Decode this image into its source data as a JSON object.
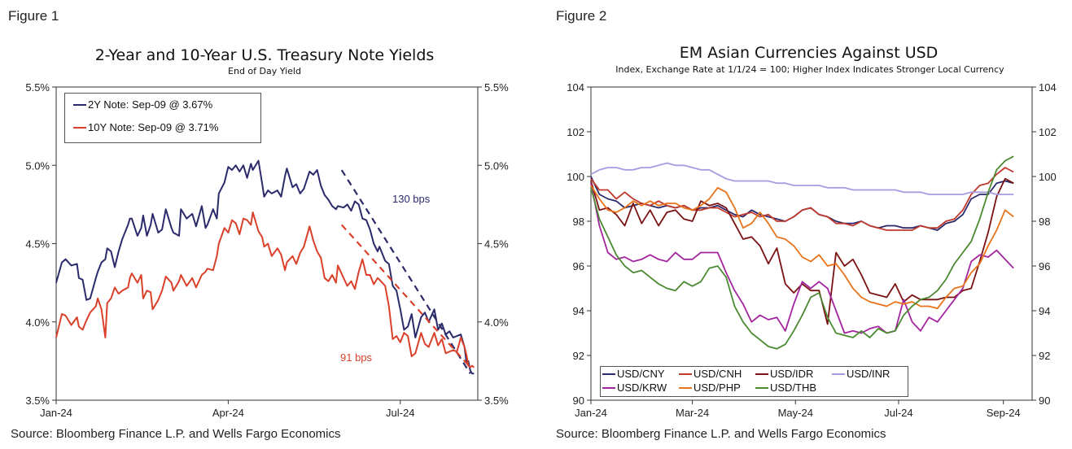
{
  "figure1": {
    "figure_label": "Figure 1",
    "source": "Source: Bloomberg Finance L.P. and Wells Fargo Economics",
    "chart_data": {
      "type": "line",
      "title": "2-Year and 10-Year U.S. Treasury Note Yields",
      "subtitle": "End of Day Yield",
      "xlabel": "",
      "ylabel": "",
      "x_ticks": [
        "Jan-24",
        "Apr-24",
        "Jul-24"
      ],
      "x_tick_days": [
        0,
        91,
        182
      ],
      "x_range_days": [
        0,
        223
      ],
      "ylim": [
        3.5,
        5.5
      ],
      "y_ticks": [
        "3.5%",
        "4.0%",
        "4.5%",
        "5.0%",
        "5.5%"
      ],
      "y_tick_values": [
        3.5,
        4.0,
        4.5,
        5.0,
        5.5
      ],
      "legend": [
        "2Y Note: Sep-09 @ 3.67%",
        "10Y Note: Sep-09 @ 3.71%"
      ],
      "legend_position": "top-left",
      "series": [
        {
          "name": "2Y Note",
          "color": "#2b2a6b",
          "x": [
            0,
            3,
            5,
            8,
            11,
            12,
            14,
            16,
            18,
            21,
            22,
            24,
            26,
            27,
            29,
            31,
            33,
            35,
            38,
            39,
            40,
            43,
            45,
            46,
            48,
            50,
            51,
            54,
            56,
            58,
            61,
            62,
            65,
            66,
            69,
            72,
            74,
            77,
            79,
            80,
            83,
            85,
            86,
            89,
            91,
            93,
            95,
            97,
            99,
            101,
            103,
            104,
            107,
            109,
            110,
            112,
            114,
            117,
            119,
            121,
            122,
            125,
            127,
            129,
            131,
            134,
            136,
            138,
            140,
            142,
            144,
            146,
            148,
            149,
            152,
            154,
            156,
            158,
            160,
            162,
            164,
            166,
            168,
            170,
            171,
            174,
            176,
            178,
            180,
            182,
            184,
            186,
            188,
            190,
            193,
            195,
            197,
            200,
            202,
            204,
            206,
            208,
            210,
            212,
            214,
            216,
            217,
            218,
            219,
            220,
            221
          ],
          "values": [
            4.25,
            4.38,
            4.4,
            4.36,
            4.37,
            4.28,
            4.27,
            4.14,
            4.15,
            4.28,
            4.32,
            4.38,
            4.4,
            4.47,
            4.45,
            4.35,
            4.45,
            4.53,
            4.62,
            4.66,
            4.66,
            4.55,
            4.6,
            4.68,
            4.55,
            4.62,
            4.69,
            4.57,
            4.59,
            4.72,
            4.6,
            4.57,
            4.55,
            4.72,
            4.66,
            4.69,
            4.61,
            4.74,
            4.6,
            4.62,
            4.72,
            4.66,
            4.82,
            4.89,
            4.99,
            4.97,
            5.0,
            4.96,
            5.0,
            4.92,
            5.01,
            4.97,
            5.03,
            4.88,
            4.8,
            4.84,
            4.82,
            4.84,
            4.8,
            4.93,
            4.98,
            4.86,
            4.88,
            4.82,
            4.85,
            4.96,
            4.94,
            4.97,
            4.87,
            4.81,
            4.78,
            4.74,
            4.72,
            4.74,
            4.73,
            4.75,
            4.71,
            4.77,
            4.75,
            4.66,
            4.65,
            4.59,
            4.5,
            4.45,
            4.48,
            4.39,
            4.37,
            4.23,
            4.2,
            4.08,
            3.95,
            3.97,
            4.05,
            3.9,
            4.03,
            4.06,
            4.0,
            4.08,
            3.95,
            3.99,
            3.92,
            3.94,
            3.9,
            3.91,
            3.92,
            3.84,
            3.74,
            3.75,
            3.69,
            3.67,
            3.67
          ]
        },
        {
          "name": "10Y Note",
          "color": "#d9412b",
          "x": [
            0,
            3,
            5,
            8,
            11,
            12,
            14,
            16,
            18,
            21,
            22,
            24,
            26,
            27,
            29,
            31,
            33,
            35,
            38,
            39,
            40,
            43,
            45,
            46,
            48,
            50,
            51,
            54,
            56,
            58,
            61,
            62,
            65,
            66,
            69,
            72,
            74,
            77,
            79,
            80,
            83,
            85,
            86,
            89,
            91,
            93,
            95,
            97,
            99,
            101,
            103,
            104,
            107,
            109,
            110,
            112,
            114,
            117,
            119,
            121,
            122,
            125,
            127,
            129,
            131,
            134,
            136,
            138,
            140,
            142,
            144,
            146,
            148,
            149,
            152,
            154,
            156,
            158,
            160,
            162,
            164,
            166,
            168,
            170,
            171,
            174,
            176,
            178,
            180,
            182,
            184,
            186,
            188,
            190,
            193,
            195,
            197,
            200,
            202,
            204,
            206,
            208,
            210,
            212,
            214,
            216,
            217,
            218,
            219,
            220,
            221
          ],
          "values": [
            3.9,
            4.05,
            4.04,
            3.98,
            4.03,
            3.97,
            3.95,
            4.01,
            4.06,
            4.1,
            4.15,
            4.08,
            3.9,
            4.12,
            4.15,
            4.22,
            4.18,
            4.2,
            4.22,
            4.28,
            4.31,
            4.25,
            4.3,
            4.15,
            4.2,
            4.19,
            4.08,
            4.14,
            4.2,
            4.29,
            4.25,
            4.2,
            4.26,
            4.3,
            4.23,
            4.28,
            4.22,
            4.3,
            4.32,
            4.34,
            4.33,
            4.42,
            4.5,
            4.6,
            4.57,
            4.65,
            4.63,
            4.56,
            4.66,
            4.65,
            4.62,
            4.7,
            4.58,
            4.54,
            4.48,
            4.5,
            4.42,
            4.47,
            4.43,
            4.33,
            4.38,
            4.42,
            4.37,
            4.44,
            4.48,
            4.61,
            4.52,
            4.45,
            4.41,
            4.28,
            4.26,
            4.3,
            4.25,
            4.36,
            4.28,
            4.23,
            4.26,
            4.21,
            4.32,
            4.4,
            4.3,
            4.3,
            4.24,
            4.28,
            4.27,
            4.23,
            4.1,
            3.89,
            3.91,
            3.87,
            3.93,
            3.91,
            3.78,
            3.8,
            3.93,
            3.86,
            3.84,
            3.93,
            3.85,
            3.89,
            3.8,
            3.81,
            3.82,
            3.81,
            3.9,
            3.84,
            3.79,
            3.72,
            3.71,
            3.72,
            3.71
          ]
        }
      ],
      "trend_lines": [
        {
          "name": "2Y decline",
          "color": "#2b2a6b",
          "x": [
            151,
            219
          ],
          "values": [
            4.97,
            3.67
          ],
          "label": "130 bps"
        },
        {
          "name": "10Y decline",
          "color": "#d9412b",
          "x": [
            151,
            219
          ],
          "values": [
            4.62,
            3.71
          ],
          "label": "91 bps"
        }
      ]
    }
  },
  "figure2": {
    "figure_label": "Figure 2",
    "source": "Source: Bloomberg Finance L.P. and Wells Fargo Economics",
    "chart_data": {
      "type": "line",
      "title": "EM Asian Currencies Against USD",
      "subtitle": "Index, Exchange Rate at 1/1/24 = 100; Higher Index Indicates Stronger Local Currency",
      "xlabel": "",
      "ylabel": "",
      "x_ticks": [
        "Jan-24",
        "Mar-24",
        "May-24",
        "Jul-24",
        "Sep-24"
      ],
      "x_tick_days": [
        0,
        60,
        121,
        182,
        244
      ],
      "x_range_days": [
        0,
        261
      ],
      "ylim": [
        90,
        104
      ],
      "y_ticks": [
        "90",
        "92",
        "94",
        "96",
        "98",
        "100",
        "102",
        "104"
      ],
      "y_tick_values": [
        90,
        92,
        94,
        96,
        98,
        100,
        102,
        104
      ],
      "legend": [
        "USD/CNY",
        "USD/CNH",
        "USD/IDR",
        "USD/INR",
        "USD/KRW",
        "USD/PHP",
        "USD/THB"
      ],
      "legend_position": "bottom-left",
      "x": [
        0,
        5,
        10,
        15,
        20,
        25,
        30,
        35,
        40,
        45,
        50,
        55,
        60,
        65,
        70,
        75,
        80,
        85,
        90,
        95,
        100,
        105,
        110,
        115,
        120,
        125,
        130,
        135,
        140,
        145,
        150,
        155,
        160,
        165,
        170,
        175,
        180,
        185,
        190,
        195,
        200,
        205,
        210,
        215,
        220,
        225,
        230,
        235,
        240,
        245,
        250
      ],
      "series": [
        {
          "name": "USD/CNY",
          "color": "#2b2a6b",
          "values": [
            100,
            99.2,
            99.0,
            98.9,
            98.6,
            98.7,
            98.8,
            98.7,
            98.6,
            98.7,
            98.6,
            98.7,
            98.5,
            98.6,
            98.6,
            98.7,
            98.5,
            98.3,
            98.2,
            98.5,
            98.3,
            98.2,
            98.1,
            98.0,
            98.2,
            98.5,
            98.6,
            98.3,
            98.2,
            98.0,
            97.9,
            97.9,
            98.0,
            97.8,
            97.7,
            97.8,
            97.8,
            97.7,
            97.7,
            97.8,
            97.7,
            97.6,
            97.9,
            98.0,
            98.3,
            99.0,
            99.2,
            99.2,
            99.7,
            99.8,
            99.7
          ]
        },
        {
          "name": "USD/CNH",
          "color": "#c0392b",
          "values": [
            99.9,
            99.4,
            99.4,
            99.0,
            99.3,
            99.0,
            98.8,
            98.7,
            98.9,
            98.7,
            98.6,
            98.7,
            98.5,
            98.5,
            98.6,
            98.6,
            98.4,
            98.2,
            98.3,
            98.4,
            98.2,
            98.3,
            98.0,
            98.0,
            98.2,
            98.5,
            98.6,
            98.3,
            98.2,
            97.9,
            97.9,
            97.8,
            98.0,
            97.8,
            97.7,
            97.6,
            97.6,
            97.6,
            97.6,
            97.8,
            97.7,
            97.7,
            98.0,
            98.1,
            98.5,
            99.2,
            99.6,
            99.7,
            100.1,
            100.4,
            100.2
          ]
        },
        {
          "name": "USD/IDR",
          "color": "#7a1212",
          "values": [
            99.8,
            98.5,
            98.6,
            98.3,
            97.8,
            98.8,
            97.9,
            98.5,
            97.8,
            98.4,
            98.5,
            98.1,
            98.0,
            98.9,
            98.7,
            98.8,
            98.6,
            97.9,
            97.2,
            97.3,
            96.9,
            96.1,
            96.8,
            95.2,
            94.8,
            95.2,
            94.9,
            94.9,
            93.4,
            96.6,
            96.0,
            96.3,
            95.6,
            94.8,
            94.7,
            94.6,
            95.2,
            94.4,
            94.7,
            94.5,
            94.5,
            94.5,
            94.6,
            94.6,
            94.9,
            95.0,
            96.2,
            97.5,
            99.1,
            99.9,
            99.7
          ]
        },
        {
          "name": "USD/INR",
          "color": "#a79ce0",
          "values": [
            100.1,
            100.3,
            100.4,
            100.4,
            100.3,
            100.3,
            100.4,
            100.4,
            100.5,
            100.6,
            100.5,
            100.5,
            100.4,
            100.3,
            100.3,
            100.1,
            99.9,
            99.8,
            99.8,
            99.8,
            99.8,
            99.8,
            99.7,
            99.7,
            99.6,
            99.6,
            99.6,
            99.6,
            99.5,
            99.5,
            99.5,
            99.4,
            99.4,
            99.4,
            99.4,
            99.4,
            99.4,
            99.3,
            99.3,
            99.3,
            99.2,
            99.2,
            99.2,
            99.2,
            99.2,
            99.3,
            99.3,
            99.3,
            99.2,
            99.2,
            99.2
          ]
        },
        {
          "name": "USD/KRW",
          "color": "#a3259e",
          "values": [
            99.7,
            97.8,
            96.6,
            96.3,
            96.4,
            96.2,
            96.3,
            96.5,
            96.3,
            96.2,
            96.6,
            96.3,
            96.3,
            96.6,
            96.6,
            96.6,
            95.7,
            94.9,
            94.3,
            93.5,
            93.8,
            93.6,
            93.7,
            93.1,
            94.3,
            95.3,
            95.0,
            95.3,
            95.0,
            94.0,
            93.0,
            93.1,
            93.0,
            93.2,
            93.3,
            93.0,
            93.1,
            94.5,
            93.5,
            93.1,
            93.7,
            93.5,
            94.0,
            94.5,
            95.0,
            96.2,
            96.5,
            96.4,
            96.7,
            96.3,
            95.9
          ]
        },
        {
          "name": "USD/PHP",
          "color": "#e8731a",
          "values": [
            99.6,
            99.0,
            98.5,
            98.4,
            98.6,
            98.9,
            98.7,
            98.9,
            98.7,
            98.8,
            98.8,
            98.6,
            98.5,
            98.7,
            99.0,
            99.5,
            99.3,
            98.6,
            97.7,
            97.9,
            98.4,
            97.9,
            97.3,
            97.2,
            96.9,
            96.4,
            96.2,
            96.5,
            96.0,
            96.1,
            95.6,
            95.0,
            94.6,
            94.4,
            94.3,
            94.2,
            94.4,
            94.3,
            94.4,
            94.2,
            94.2,
            94.1,
            94.6,
            95.0,
            95.1,
            95.7,
            96.1,
            96.9,
            97.6,
            98.5,
            98.2
          ]
        },
        {
          "name": "USD/THB",
          "color": "#4a8a31",
          "values": [
            99.5,
            98.1,
            97.3,
            96.5,
            96.0,
            95.7,
            95.8,
            95.5,
            95.2,
            95.0,
            94.9,
            95.3,
            95.1,
            95.3,
            95.9,
            96.0,
            95.5,
            94.2,
            93.5,
            93.0,
            92.7,
            92.4,
            92.3,
            92.5,
            93.1,
            93.8,
            94.6,
            94.8,
            93.7,
            93.0,
            92.9,
            92.8,
            93.1,
            92.8,
            93.2,
            93.0,
            93.1,
            93.8,
            94.2,
            94.5,
            94.6,
            94.9,
            95.4,
            96.1,
            96.6,
            97.1,
            98.1,
            99.3,
            100.3,
            100.7,
            100.9
          ]
        }
      ]
    }
  }
}
